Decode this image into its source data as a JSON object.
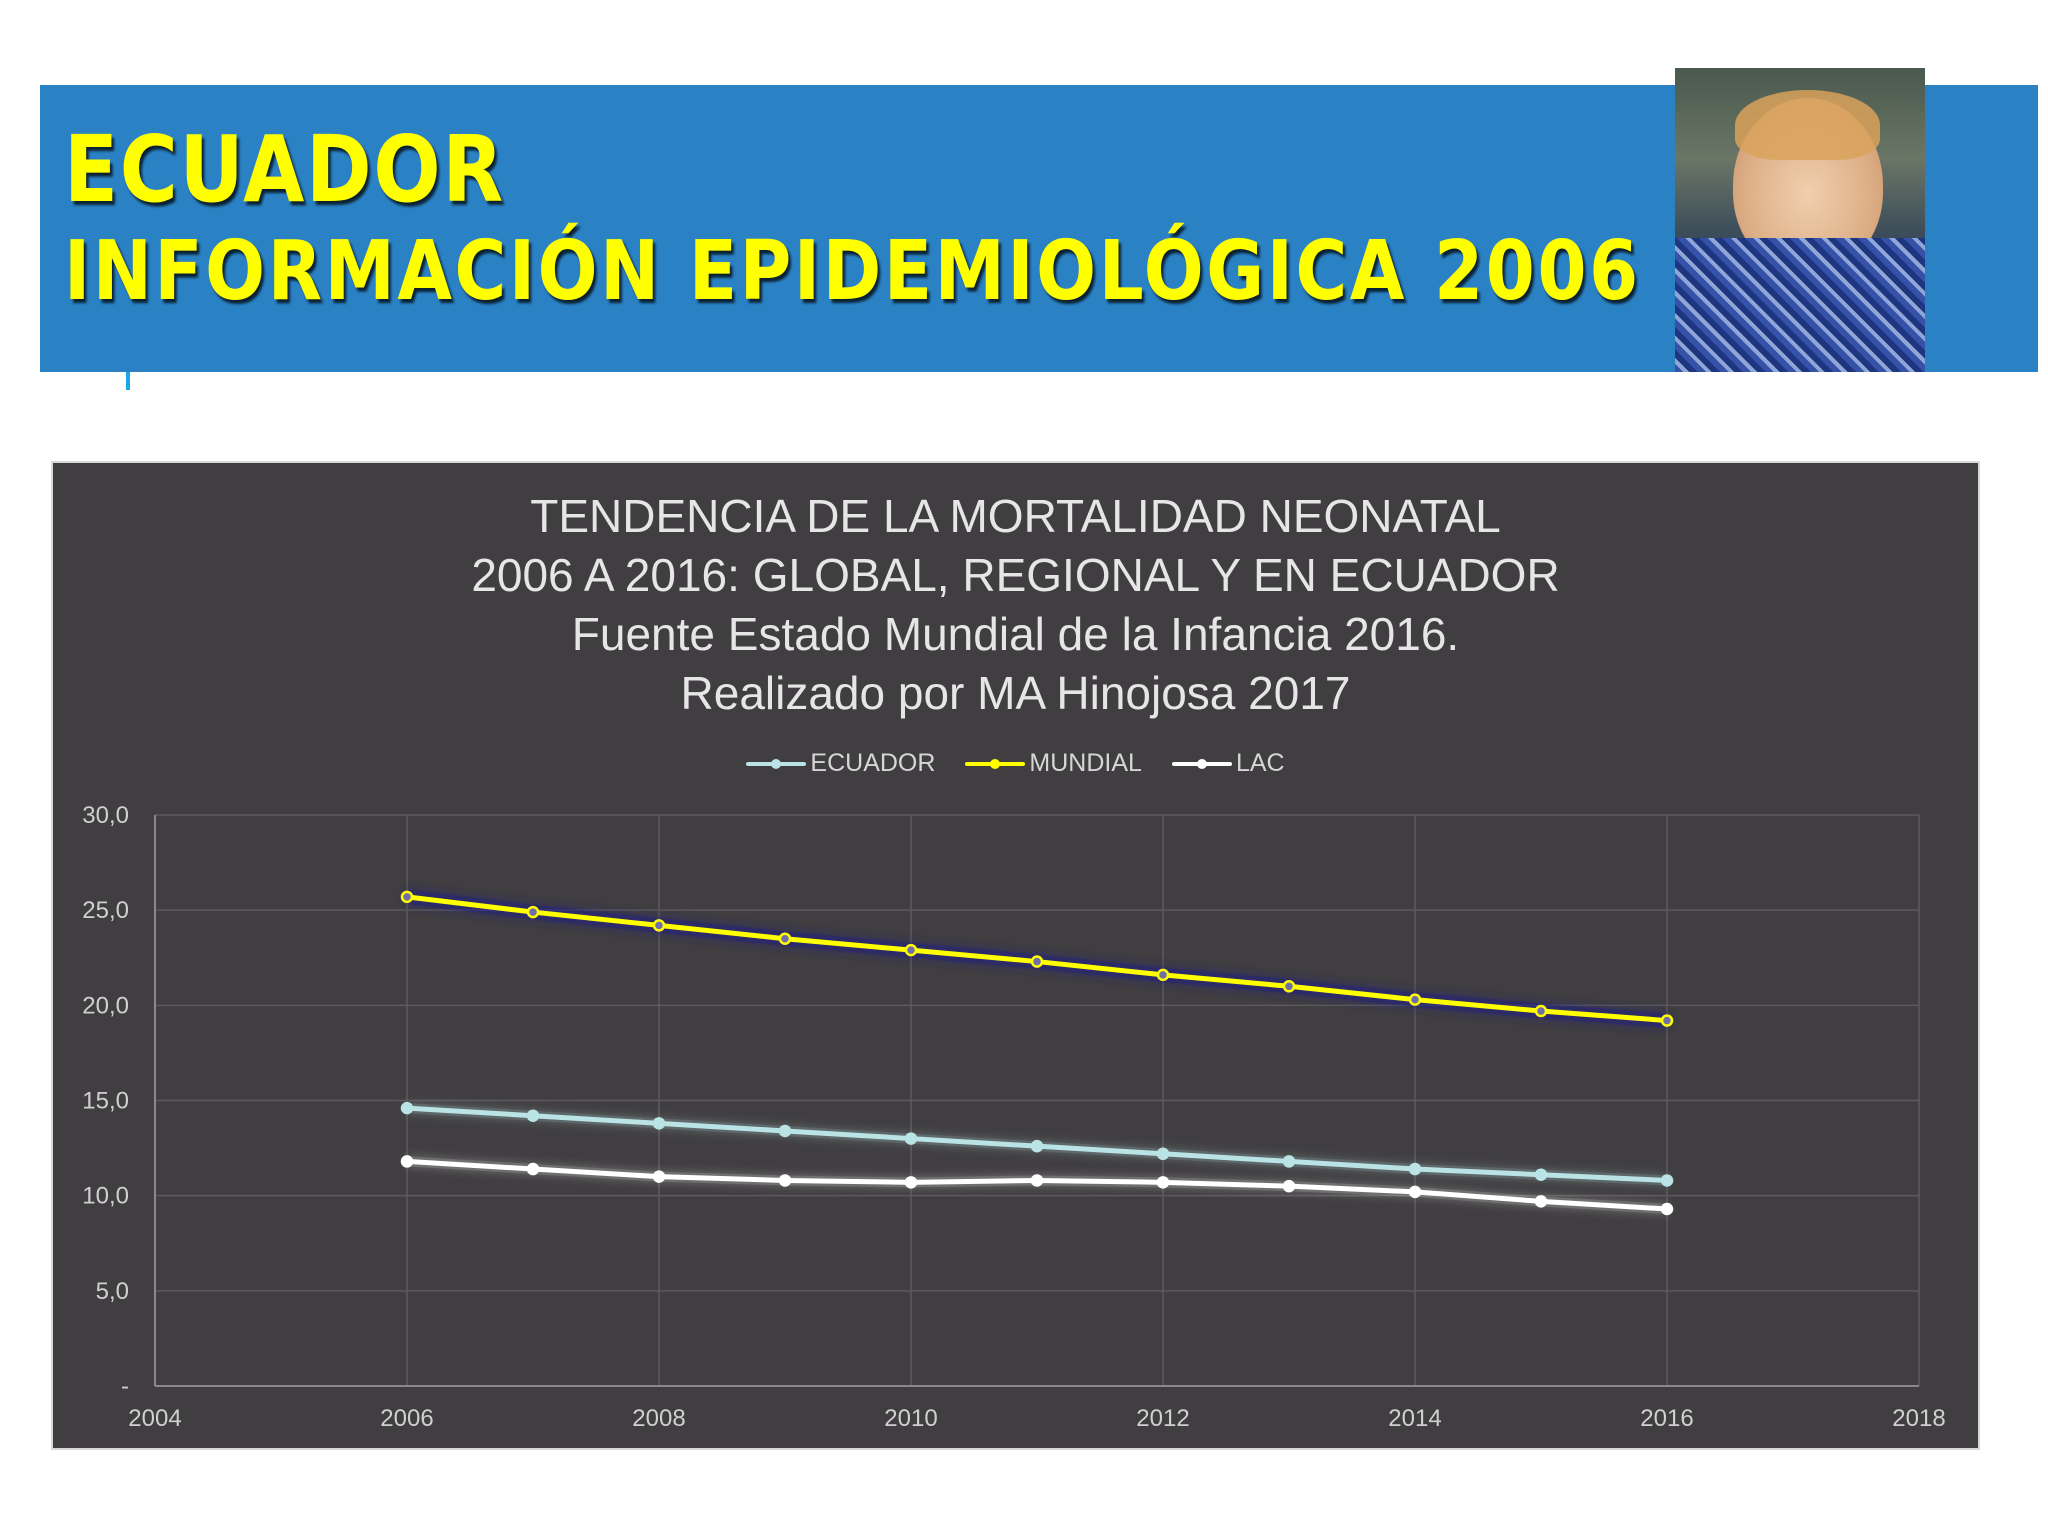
{
  "header": {
    "title_line1": "ECUADOR",
    "title_line2": "INFORMACIÓN EPIDEMIOLÓGICA 2006",
    "banner_color": "#2a82c5",
    "title_color": "#ffff00",
    "photo": "child-photo"
  },
  "chart": {
    "title_lines": [
      "TENDENCIA DE LA MORTALIDAD NEONATAL",
      "2006 A 2016: GLOBAL, REGIONAL  Y EN ECUADOR",
      "Fuente Estado Mundial de la Infancia 2016.",
      "Realizado por MA Hinojosa 2017"
    ],
    "legend": [
      {
        "label": "ECUADOR",
        "color": "#b9e3e4"
      },
      {
        "label": "MUNDIAL",
        "color": "#ffff00"
      },
      {
        "label": "LAC",
        "color": "#ffffff"
      }
    ],
    "background": "#403e40"
  },
  "chart_data": {
    "type": "line",
    "title": "TENDENCIA DE LA MORTALIDAD NEONATAL 2006 A 2016: GLOBAL, REGIONAL  Y EN ECUADOR Fuente Estado Mundial de la Infancia 2016. Realizado por MA Hinojosa 2017",
    "xlabel": "",
    "ylabel": "",
    "x": [
      2006,
      2007,
      2008,
      2009,
      2010,
      2011,
      2012,
      2013,
      2014,
      2015,
      2016
    ],
    "series": [
      {
        "name": "ECUADOR",
        "color": "#b9e3e4",
        "values": [
          14.6,
          14.2,
          13.8,
          13.4,
          13.0,
          12.6,
          12.2,
          11.8,
          11.4,
          11.1,
          10.8
        ]
      },
      {
        "name": "MUNDIAL",
        "color": "#ffff00",
        "values": [
          25.7,
          24.9,
          24.2,
          23.5,
          22.9,
          22.3,
          21.6,
          21.0,
          20.3,
          19.7,
          19.2
        ]
      },
      {
        "name": "LAC",
        "color": "#ffffff",
        "values": [
          11.8,
          11.4,
          11.0,
          10.8,
          10.7,
          10.8,
          10.7,
          10.5,
          10.2,
          9.7,
          9.3
        ]
      }
    ],
    "xlim": [
      2004,
      2018
    ],
    "ylim": [
      0,
      30
    ],
    "x_ticks": [
      "2004",
      "2006",
      "2008",
      "2010",
      "2012",
      "2014",
      "2016",
      "2018"
    ],
    "y_ticks": [
      "-",
      "5,0",
      "10,0",
      "15,0",
      "20,0",
      "25,0",
      "30,0"
    ],
    "grid": true,
    "legend_position": "top"
  }
}
